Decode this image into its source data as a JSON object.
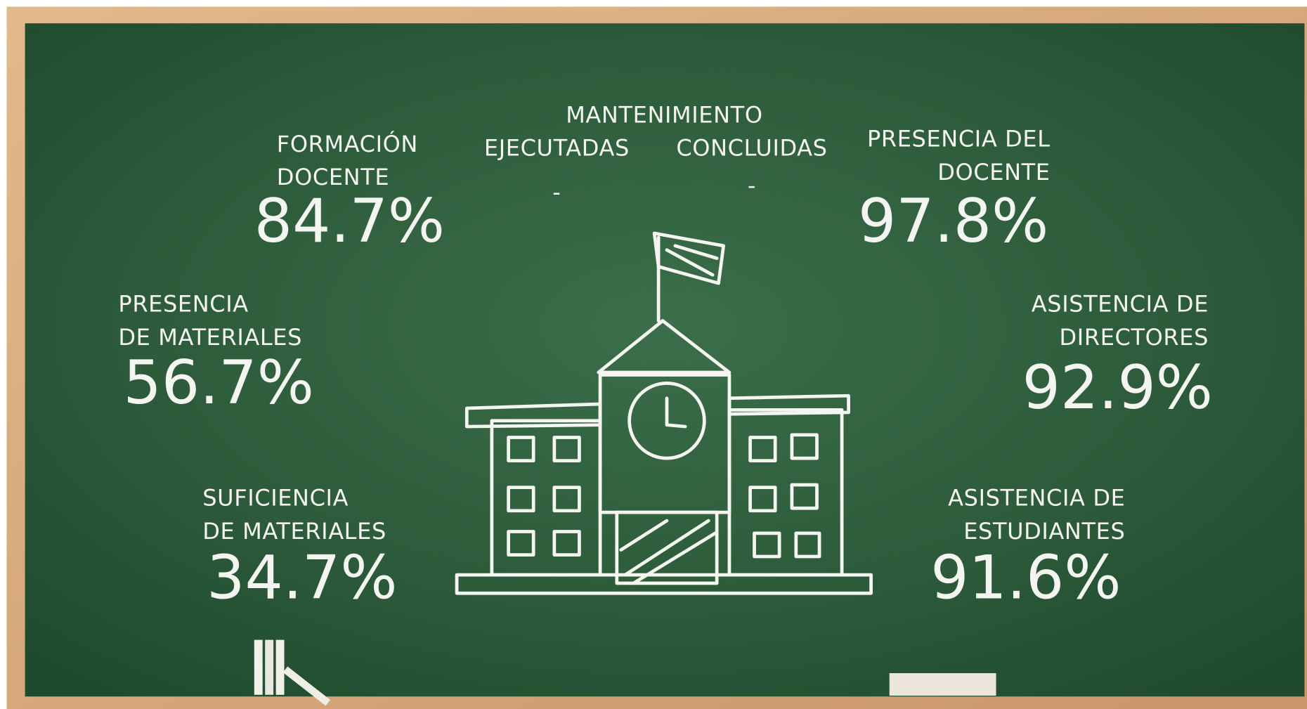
{
  "maintenance": {
    "title": "MANTENIMIENTO",
    "columns": [
      {
        "label": "EJECUTADAS",
        "value": "-"
      },
      {
        "label": "CONCLUIDAS",
        "value": "-"
      }
    ]
  },
  "metrics": [
    {
      "label": [
        "FORMACIÓN",
        "DOCENTE"
      ],
      "value": "84.7%"
    },
    {
      "label": [
        "PRESENCIA DEL",
        "DOCENTE"
      ],
      "value": "97.8%"
    },
    {
      "label": [
        "PRESENCIA",
        "DE MATERIALES"
      ],
      "value": "56.7%"
    },
    {
      "label": [
        "ASISTENCIA DE",
        "DIRECTORES"
      ],
      "value": "92.9%"
    },
    {
      "label": [
        "SUFICIENCIA",
        "DE MATERIALES"
      ],
      "value": "34.7%"
    },
    {
      "label": [
        "ASISTENCIA DE",
        "ESTUDIANTES"
      ],
      "value": "91.6%"
    }
  ]
}
